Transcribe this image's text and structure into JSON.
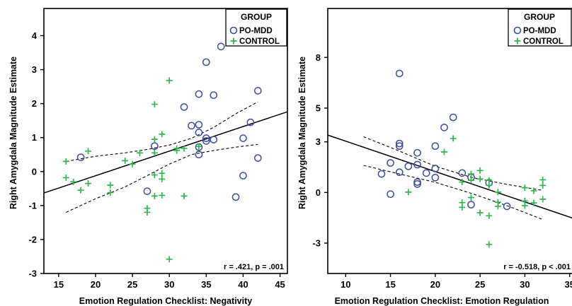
{
  "y_axis_label": "Right Amygdala Magnitude Estimate",
  "legend": {
    "title": "GROUP",
    "items": [
      {
        "label": "PO-MDD",
        "marker": "circle",
        "color": "#3a4fa0"
      },
      {
        "label": "CONTROL",
        "marker": "plus",
        "color": "#2db84a"
      }
    ]
  },
  "chart_data": [
    {
      "type": "scatter",
      "xlabel": "Emotion Regulation Checklist: Negativity",
      "ylabel": "Right Amygdala Magnitude Estimate",
      "xlim": [
        13,
        46
      ],
      "ylim": [
        -3,
        4.8
      ],
      "xticks": [
        15,
        20,
        25,
        30,
        35,
        40,
        45
      ],
      "yticks": [
        -3,
        -2,
        -1,
        0,
        1,
        2,
        3,
        4
      ],
      "annotation": "r = .421, p = .001",
      "fit_line": {
        "x": [
          13,
          46
        ],
        "y": [
          -0.63,
          1.76
        ]
      },
      "ci_upper": {
        "x": [
          16,
          20,
          24,
          27,
          30,
          33,
          36,
          39,
          42
        ],
        "y": [
          0.3,
          0.45,
          0.55,
          0.65,
          0.78,
          0.98,
          1.3,
          1.7,
          2.05
        ]
      },
      "ci_lower": {
        "x": [
          16,
          20,
          24,
          27,
          30,
          33,
          36,
          39,
          42
        ],
        "y": [
          -1.2,
          -0.8,
          -0.45,
          -0.12,
          0.22,
          0.5,
          0.62,
          0.72,
          0.8
        ]
      },
      "series": [
        {
          "name": "PO-MDD",
          "points": [
            [
              18,
              0.42
            ],
            [
              27,
              -0.58
            ],
            [
              28,
              0.75
            ],
            [
              32,
              1.9
            ],
            [
              33,
              1.35
            ],
            [
              34,
              2.28
            ],
            [
              34,
              1.38
            ],
            [
              34,
              1.15
            ],
            [
              34,
              0.72
            ],
            [
              34,
              0.5
            ],
            [
              35,
              3.22
            ],
            [
              35,
              0.98
            ],
            [
              35,
              0.9
            ],
            [
              36,
              2.25
            ],
            [
              36,
              0.94
            ],
            [
              37,
              3.68
            ],
            [
              39,
              -0.75
            ],
            [
              40,
              0.98
            ],
            [
              40,
              -0.12
            ],
            [
              41,
              1.45
            ],
            [
              42,
              2.38
            ],
            [
              42,
              0.4
            ]
          ]
        },
        {
          "name": "CONTROL",
          "points": [
            [
              16,
              0.3
            ],
            [
              16,
              -0.18
            ],
            [
              17,
              -0.3
            ],
            [
              18,
              -0.55
            ],
            [
              19,
              0.6
            ],
            [
              19,
              -0.35
            ],
            [
              22,
              -0.4
            ],
            [
              22,
              -0.62
            ],
            [
              24,
              0.32
            ],
            [
              25,
              0.22
            ],
            [
              26,
              0.55
            ],
            [
              27,
              -1.08
            ],
            [
              27,
              -1.2
            ],
            [
              28,
              1.98
            ],
            [
              28,
              0.95
            ],
            [
              28,
              0.55
            ],
            [
              28,
              -0.1
            ],
            [
              28,
              -0.72
            ],
            [
              29,
              1.1
            ],
            [
              29,
              -0.05
            ],
            [
              29,
              -0.22
            ],
            [
              29,
              -0.7
            ],
            [
              30,
              2.68
            ],
            [
              30,
              -2.58
            ],
            [
              31,
              0.68
            ],
            [
              31,
              0.62
            ],
            [
              32,
              0.68
            ],
            [
              32,
              -0.72
            ],
            [
              34,
              0.74
            ]
          ]
        }
      ]
    },
    {
      "type": "scatter",
      "xlabel": "Emotion Regulation Checklist: Emotion Regulation",
      "ylabel": "Right Amygdala Magnitude Estimate",
      "xlim": [
        8,
        35.5
      ],
      "ylim": [
        -4.8,
        10.9
      ],
      "xticks": [
        10,
        15,
        20,
        25,
        30,
        35
      ],
      "yticks": [
        -3,
        0,
        3,
        5,
        8
      ],
      "annotation": "r = -0.518, p < .001",
      "fit_line": {
        "x": [
          8,
          35.5
        ],
        "y": [
          3.4,
          -1.55
        ]
      },
      "ci_upper": {
        "x": [
          12,
          16,
          20,
          24,
          28,
          32
        ],
        "y": [
          3.3,
          2.45,
          1.55,
          0.9,
          0.48,
          0.12
        ]
      },
      "ci_lower": {
        "x": [
          12,
          16,
          20,
          24,
          28,
          32
        ],
        "y": [
          1.6,
          1.1,
          0.6,
          -0.05,
          -0.78,
          -1.6
        ]
      },
      "series": [
        {
          "name": "PO-MDD",
          "points": [
            [
              14,
              1.1
            ],
            [
              15,
              1.75
            ],
            [
              15,
              -0.1
            ],
            [
              16,
              7.05
            ],
            [
              16,
              2.9
            ],
            [
              16,
              2.75
            ],
            [
              16,
              1.2
            ],
            [
              17,
              1.55
            ],
            [
              18,
              2.35
            ],
            [
              18,
              1.65
            ],
            [
              18,
              0.62
            ],
            [
              18,
              0.5
            ],
            [
              19,
              1.15
            ],
            [
              20,
              2.75
            ],
            [
              20,
              1.42
            ],
            [
              20,
              0.88
            ],
            [
              21,
              3.85
            ],
            [
              22,
              4.45
            ],
            [
              23,
              1.15
            ],
            [
              24,
              0.9
            ],
            [
              24,
              -0.72
            ],
            [
              26,
              0.58
            ],
            [
              28,
              -0.82
            ]
          ]
        },
        {
          "name": "CONTROL",
          "points": [
            [
              17,
              0.02
            ],
            [
              21,
              2.4
            ],
            [
              22,
              3.2
            ],
            [
              23,
              0.62
            ],
            [
              23,
              -0.6
            ],
            [
              23,
              -0.88
            ],
            [
              24,
              1.1
            ],
            [
              24,
              0.72
            ],
            [
              24,
              -0.3
            ],
            [
              25,
              1.3
            ],
            [
              25,
              0.8
            ],
            [
              25,
              -1.2
            ],
            [
              26,
              0.72
            ],
            [
              26,
              0.42
            ],
            [
              26,
              -1.38
            ],
            [
              26,
              -3.08
            ],
            [
              27,
              0.02
            ],
            [
              27,
              -0.58
            ],
            [
              27,
              -0.82
            ],
            [
              30,
              0.28
            ],
            [
              30,
              -0.5
            ],
            [
              30,
              -0.78
            ],
            [
              31,
              -0.62
            ],
            [
              31,
              0.1
            ],
            [
              32,
              0.75
            ],
            [
              32,
              0.42
            ],
            [
              32,
              -0.4
            ]
          ]
        }
      ]
    }
  ]
}
